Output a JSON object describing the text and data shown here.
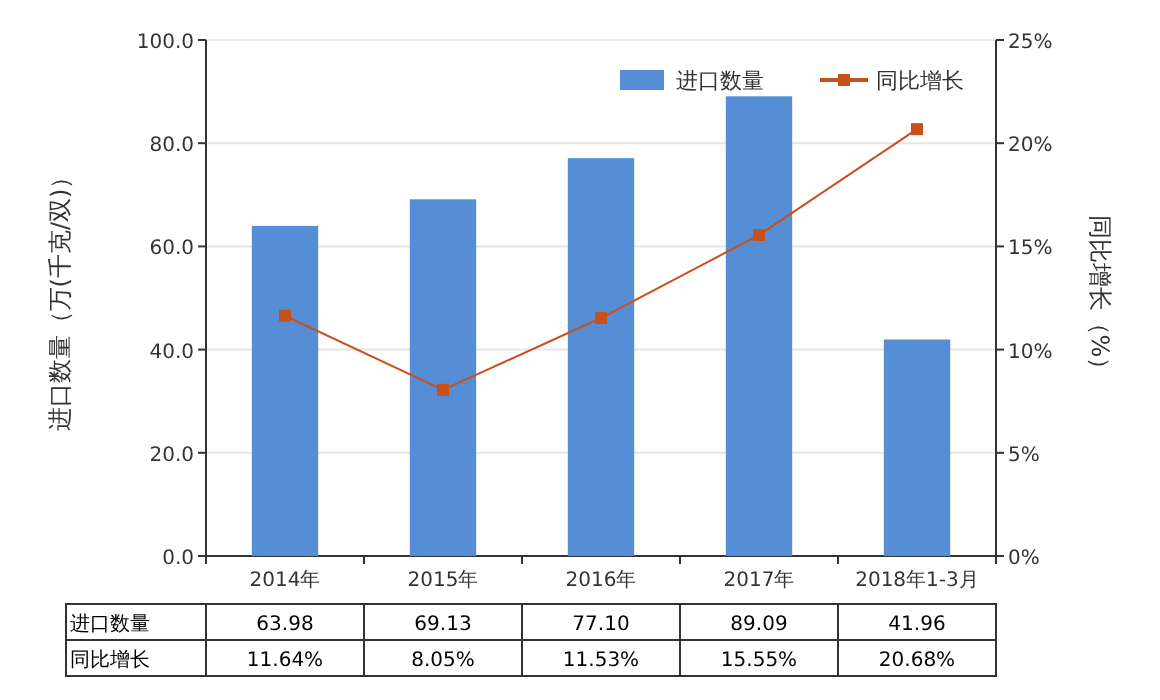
{
  "chart_data": {
    "type": "bar",
    "categories": [
      "2014年",
      "2015年",
      "2016年",
      "2017年",
      "2018年1-3月"
    ],
    "ylabel": "进口数量（万(千克/双)）",
    "y2label": "同比增长（%）",
    "ylim": [
      0,
      100
    ],
    "yticks": [
      {
        "value": 0,
        "label": "0.0"
      },
      {
        "value": 20,
        "label": "20.0"
      },
      {
        "value": 40,
        "label": "40.0"
      },
      {
        "value": 60,
        "label": "60.0"
      },
      {
        "value": 80,
        "label": "80.0"
      },
      {
        "value": 100,
        "label": "100.0"
      }
    ],
    "y2lim": [
      0,
      25
    ],
    "y2ticks": [
      {
        "value": 0,
        "label": "0%"
      },
      {
        "value": 5,
        "label": "5%"
      },
      {
        "value": 10,
        "label": "10%"
      },
      {
        "value": 15,
        "label": "15%"
      },
      {
        "value": 20,
        "label": "20%"
      },
      {
        "value": 25,
        "label": "25%"
      }
    ],
    "grid": "y",
    "legend": "top right",
    "series": [
      {
        "name": "进口数量",
        "color": "#558ed5",
        "values": [
          63.98,
          69.13,
          77.1,
          89.09,
          41.96
        ],
        "value_labels": [
          "63.98",
          "69.13",
          "77.10",
          "89.09",
          "41.96"
        ]
      },
      {
        "name": "同比增长",
        "type": "line",
        "axis": "y2",
        "color": "#c8511b",
        "marker": "square",
        "values": [
          11.64,
          8.05,
          11.53,
          15.55,
          20.68
        ],
        "value_labels": [
          "11.64%",
          "8.05%",
          "11.53%",
          "15.55%",
          "20.68%"
        ]
      }
    ]
  }
}
